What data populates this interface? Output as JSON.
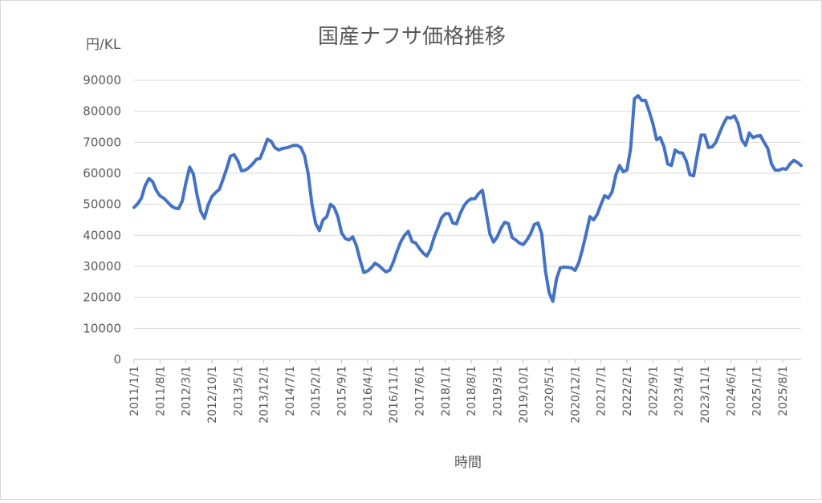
{
  "chart_data": {
    "type": "line",
    "title": "国産ナフサ価格推移",
    "ylabel": "円/KL",
    "xlabel": "時間",
    "ylim": [
      0,
      90000
    ],
    "ytick_step": 10000,
    "yticks": [
      "0",
      "10000",
      "20000",
      "30000",
      "40000",
      "50000",
      "60000",
      "70000",
      "80000",
      "90000"
    ],
    "xtick_labels": [
      "2011/1/1",
      "2011/8/1",
      "2012/3/1",
      "2012/10/1",
      "2013/5/1",
      "2013/12/1",
      "2014/7/1",
      "2015/2/1",
      "2015/9/1",
      "2016/4/1",
      "2016/11/1",
      "2017/6/1",
      "2018/1/1",
      "2018/8/1",
      "2019/3/1",
      "2019/10/1",
      "2020/5/1",
      "2020/12/1",
      "2021/7/1",
      "2022/2/1",
      "2022/9/1",
      "2023/4/1",
      "2023/11/1",
      "2024/6/1",
      "2025/1/1",
      "2025/8/1"
    ],
    "grid": true,
    "legend": "none",
    "color": "#4472c4",
    "series": [
      {
        "values": [
          [
            0,
            49000
          ],
          [
            1,
            50200
          ],
          [
            2,
            52000
          ],
          [
            3,
            56000
          ],
          [
            4,
            58300
          ],
          [
            5,
            57300
          ],
          [
            6,
            54500
          ],
          [
            7,
            52700
          ],
          [
            8,
            52000
          ],
          [
            9,
            50800
          ],
          [
            10,
            49500
          ],
          [
            11,
            48800
          ],
          [
            12,
            48600
          ],
          [
            13,
            51000
          ],
          [
            14,
            57000
          ],
          [
            15,
            62000
          ],
          [
            16,
            59800
          ],
          [
            17,
            53000
          ],
          [
            18,
            47700
          ],
          [
            19,
            45500
          ],
          [
            20,
            49800
          ],
          [
            21,
            52500
          ],
          [
            22,
            53800
          ],
          [
            23,
            54800
          ],
          [
            24,
            58000
          ],
          [
            25,
            61500
          ],
          [
            26,
            65500
          ],
          [
            27,
            66000
          ],
          [
            28,
            64000
          ],
          [
            29,
            60800
          ],
          [
            30,
            61000
          ],
          [
            31,
            61800
          ],
          [
            32,
            63000
          ],
          [
            33,
            64500
          ],
          [
            34,
            64800
          ],
          [
            35,
            67800
          ],
          [
            36,
            71000
          ],
          [
            37,
            70300
          ],
          [
            38,
            68300
          ],
          [
            39,
            67500
          ],
          [
            40,
            68000
          ],
          [
            41,
            68200
          ],
          [
            42,
            68500
          ],
          [
            43,
            69000
          ],
          [
            44,
            69000
          ],
          [
            45,
            68300
          ],
          [
            46,
            65700
          ],
          [
            47,
            59700
          ],
          [
            48,
            50000
          ],
          [
            49,
            43800
          ],
          [
            50,
            41500
          ],
          [
            51,
            45000
          ],
          [
            52,
            46000
          ],
          [
            53,
            50000
          ],
          [
            54,
            49000
          ],
          [
            55,
            46000
          ],
          [
            56,
            40800
          ],
          [
            57,
            39000
          ],
          [
            58,
            38500
          ],
          [
            59,
            39500
          ],
          [
            60,
            36700
          ],
          [
            61,
            32000
          ],
          [
            62,
            28000
          ],
          [
            63,
            28500
          ],
          [
            64,
            29500
          ],
          [
            65,
            31000
          ],
          [
            66,
            30300
          ],
          [
            67,
            29200
          ],
          [
            68,
            28200
          ],
          [
            69,
            28800
          ],
          [
            70,
            31500
          ],
          [
            71,
            35000
          ],
          [
            72,
            38000
          ],
          [
            73,
            40000
          ],
          [
            74,
            41300
          ],
          [
            75,
            38000
          ],
          [
            76,
            37500
          ],
          [
            77,
            35800
          ],
          [
            78,
            34300
          ],
          [
            79,
            33300
          ],
          [
            80,
            35500
          ],
          [
            81,
            39500
          ],
          [
            82,
            42500
          ],
          [
            83,
            45700
          ],
          [
            84,
            47000
          ],
          [
            85,
            47000
          ],
          [
            86,
            44000
          ],
          [
            87,
            43700
          ],
          [
            88,
            47000
          ],
          [
            89,
            49500
          ],
          [
            90,
            51000
          ],
          [
            91,
            51800
          ],
          [
            92,
            51800
          ],
          [
            93,
            53500
          ],
          [
            94,
            54500
          ],
          [
            95,
            47500
          ],
          [
            96,
            40500
          ],
          [
            97,
            37800
          ],
          [
            98,
            39500
          ],
          [
            99,
            42200
          ],
          [
            100,
            44200
          ],
          [
            101,
            43800
          ],
          [
            102,
            39300
          ],
          [
            103,
            38500
          ],
          [
            104,
            37500
          ],
          [
            105,
            37000
          ],
          [
            106,
            38500
          ],
          [
            107,
            40500
          ],
          [
            108,
            43500
          ],
          [
            109,
            44000
          ],
          [
            110,
            40500
          ],
          [
            111,
            28500
          ],
          [
            112,
            21500
          ],
          [
            113,
            18700
          ],
          [
            114,
            26000
          ],
          [
            115,
            29500
          ],
          [
            116,
            29800
          ],
          [
            117,
            29700
          ],
          [
            118,
            29500
          ],
          [
            119,
            28700
          ],
          [
            120,
            31200
          ],
          [
            121,
            35500
          ],
          [
            122,
            40500
          ],
          [
            123,
            46000
          ],
          [
            124,
            45000
          ],
          [
            125,
            46800
          ],
          [
            126,
            50000
          ],
          [
            127,
            52800
          ],
          [
            128,
            52000
          ],
          [
            129,
            54000
          ],
          [
            130,
            59500
          ],
          [
            131,
            62500
          ],
          [
            132,
            60500
          ],
          [
            133,
            61000
          ],
          [
            134,
            68000
          ],
          [
            135,
            84000
          ],
          [
            136,
            85000
          ],
          [
            137,
            83500
          ],
          [
            138,
            83500
          ],
          [
            139,
            80000
          ],
          [
            140,
            76000
          ],
          [
            141,
            70800
          ],
          [
            142,
            71500
          ],
          [
            143,
            68500
          ],
          [
            144,
            63000
          ],
          [
            145,
            62500
          ],
          [
            146,
            67500
          ],
          [
            147,
            66700
          ],
          [
            148,
            66500
          ],
          [
            149,
            64000
          ],
          [
            150,
            59500
          ],
          [
            151,
            59200
          ],
          [
            152,
            66000
          ],
          [
            153,
            72300
          ],
          [
            154,
            72300
          ],
          [
            155,
            68300
          ],
          [
            156,
            68500
          ],
          [
            157,
            70000
          ],
          [
            158,
            73000
          ],
          [
            159,
            75800
          ],
          [
            160,
            78000
          ],
          [
            161,
            77800
          ],
          [
            162,
            78500
          ],
          [
            163,
            76000
          ],
          [
            164,
            70800
          ],
          [
            165,
            69000
          ],
          [
            166,
            73000
          ],
          [
            167,
            71500
          ],
          [
            168,
            72000
          ],
          [
            169,
            72200
          ],
          [
            170,
            70000
          ],
          [
            171,
            68000
          ],
          [
            172,
            63000
          ],
          [
            173,
            61000
          ],
          [
            174,
            61000
          ],
          [
            175,
            61500
          ],
          [
            176,
            61300
          ],
          [
            177,
            63000
          ],
          [
            178,
            64200
          ],
          [
            179,
            63500
          ],
          [
            180,
            62500
          ]
        ]
      }
    ]
  }
}
